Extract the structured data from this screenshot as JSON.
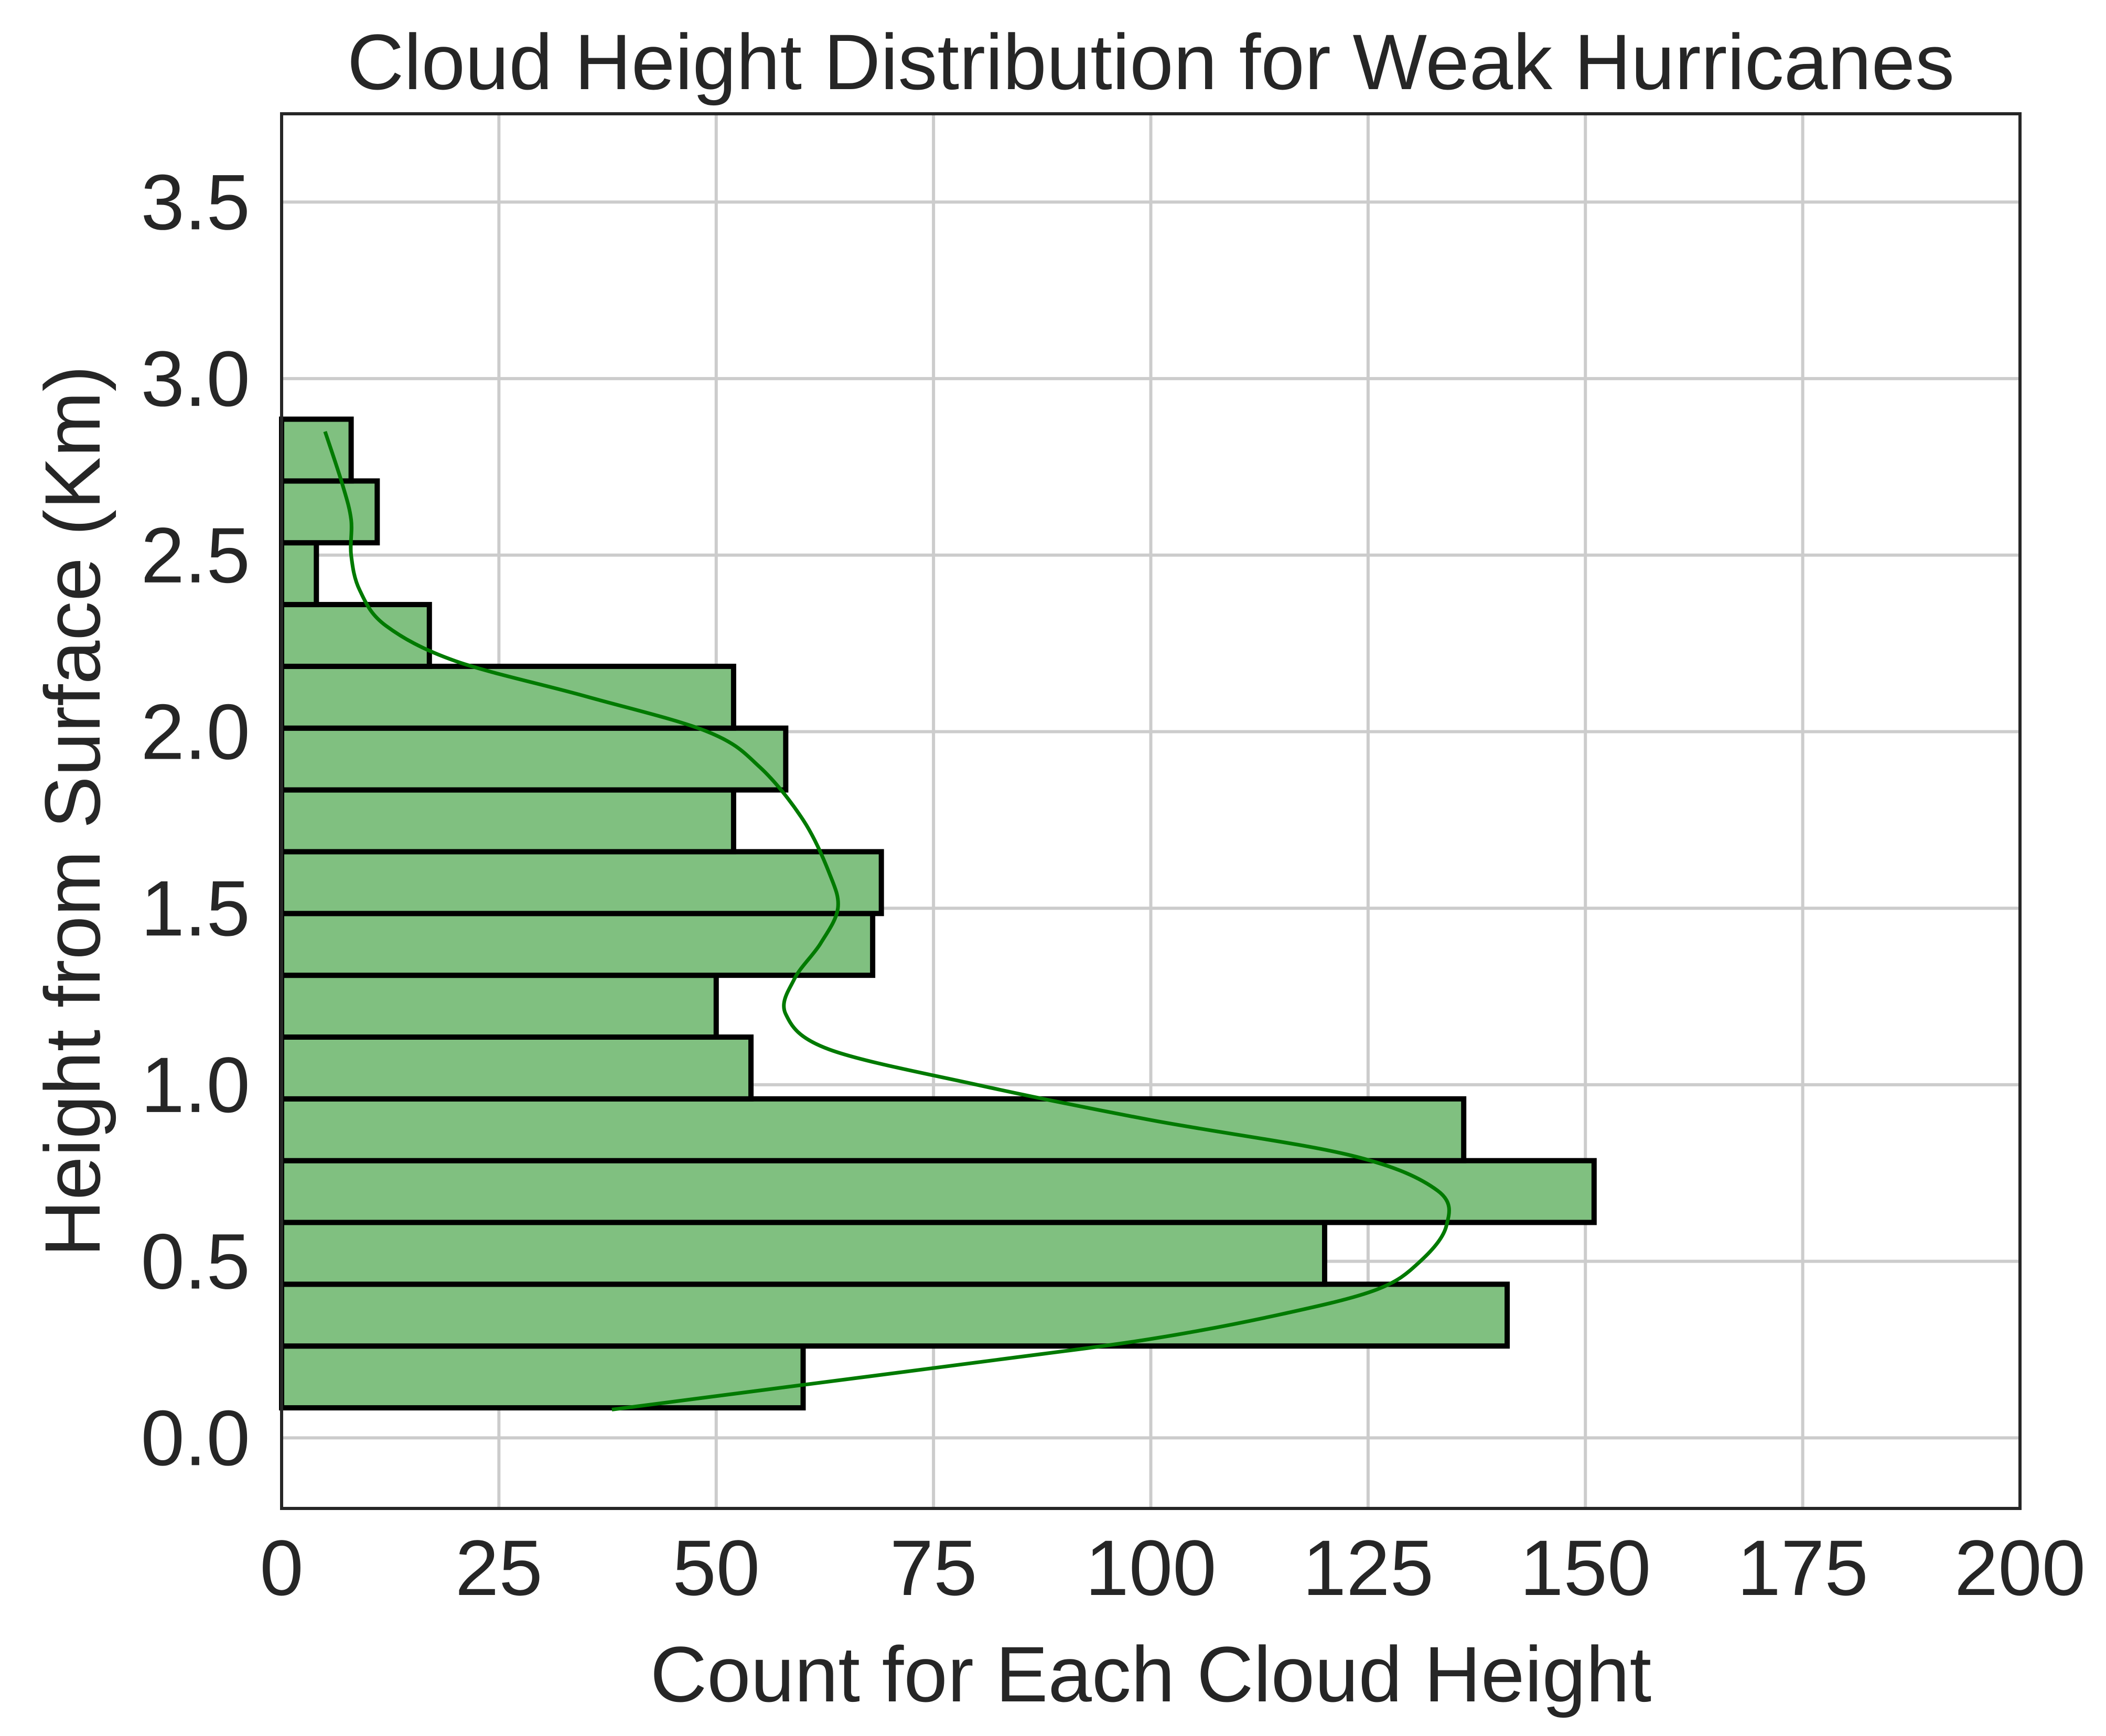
{
  "chart_data": {
    "type": "bar",
    "orientation": "horizontal",
    "title": "Cloud Height Distribution for Weak Hurricanes",
    "xlabel": "Count for Each Cloud Height",
    "ylabel": "Height from Surface (Km)",
    "xlim": [
      0,
      200
    ],
    "ylim": [
      -0.2,
      3.75
    ],
    "xticks": [
      "0",
      "25",
      "50",
      "75",
      "100",
      "125",
      "150",
      "175",
      "200"
    ],
    "yticks": [
      "0.0",
      "0.5",
      "1.0",
      "1.5",
      "2.0",
      "2.5",
      "3.0",
      "3.5"
    ],
    "grid": true,
    "colors": {
      "bar_fill": "#80c080",
      "bar_edge": "#000000",
      "kde_line": "#007a00"
    },
    "bins": [
      {
        "low": 0.085,
        "high": 0.26,
        "count": 60
      },
      {
        "low": 0.26,
        "high": 0.435,
        "count": 141
      },
      {
        "low": 0.435,
        "high": 0.61,
        "count": 120
      },
      {
        "low": 0.61,
        "high": 0.785,
        "count": 151
      },
      {
        "low": 0.785,
        "high": 0.96,
        "count": 136
      },
      {
        "low": 0.96,
        "high": 1.135,
        "count": 54
      },
      {
        "low": 1.135,
        "high": 1.31,
        "count": 50
      },
      {
        "low": 1.31,
        "high": 1.485,
        "count": 68
      },
      {
        "low": 1.485,
        "high": 1.66,
        "count": 69
      },
      {
        "low": 1.66,
        "high": 1.835,
        "count": 52
      },
      {
        "low": 1.835,
        "high": 2.01,
        "count": 58
      },
      {
        "low": 2.01,
        "high": 2.185,
        "count": 52
      },
      {
        "low": 2.185,
        "high": 2.36,
        "count": 17
      },
      {
        "low": 2.36,
        "high": 2.535,
        "count": 4
      },
      {
        "low": 2.535,
        "high": 2.71,
        "count": 11
      },
      {
        "low": 2.71,
        "high": 2.885,
        "count": 8
      }
    ],
    "kde": [
      {
        "y": 0.08,
        "x": 38
      },
      {
        "y": 0.15,
        "x": 60
      },
      {
        "y": 0.22,
        "x": 82
      },
      {
        "y": 0.28,
        "x": 100
      },
      {
        "y": 0.35,
        "x": 115
      },
      {
        "y": 0.42,
        "x": 126
      },
      {
        "y": 0.5,
        "x": 131
      },
      {
        "y": 0.6,
        "x": 134
      },
      {
        "y": 0.7,
        "x": 133
      },
      {
        "y": 0.8,
        "x": 123
      },
      {
        "y": 0.9,
        "x": 100
      },
      {
        "y": 1.0,
        "x": 80
      },
      {
        "y": 1.1,
        "x": 63
      },
      {
        "y": 1.2,
        "x": 58
      },
      {
        "y": 1.3,
        "x": 59
      },
      {
        "y": 1.4,
        "x": 62
      },
      {
        "y": 1.5,
        "x": 64
      },
      {
        "y": 1.6,
        "x": 63
      },
      {
        "y": 1.75,
        "x": 60
      },
      {
        "y": 1.9,
        "x": 55
      },
      {
        "y": 2.0,
        "x": 49
      },
      {
        "y": 2.1,
        "x": 35
      },
      {
        "y": 2.2,
        "x": 20
      },
      {
        "y": 2.3,
        "x": 12
      },
      {
        "y": 2.4,
        "x": 9
      },
      {
        "y": 2.5,
        "x": 8
      },
      {
        "y": 2.6,
        "x": 8
      },
      {
        "y": 2.7,
        "x": 7
      },
      {
        "y": 2.85,
        "x": 5
      }
    ]
  }
}
